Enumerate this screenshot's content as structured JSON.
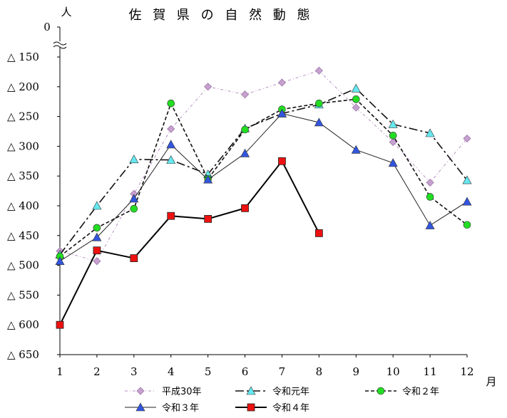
{
  "chart_data": {
    "type": "line",
    "title": "佐 賀 県 の 自 然 動 態",
    "y_unit": "人",
    "x_unit": "月",
    "x": [
      1,
      2,
      3,
      4,
      5,
      6,
      7,
      8,
      9,
      10,
      11,
      12
    ],
    "x_tick_labels": [
      "1",
      "2",
      "3",
      "4",
      "5",
      "6",
      "7",
      "8",
      "9",
      "10",
      "11",
      "12"
    ],
    "y_tick_labels": [
      "0",
      "△ 150",
      "△ 200",
      "△ 250",
      "△ 300",
      "△ 350",
      "△ 400",
      "△ 450",
      "△ 500",
      "△ 550",
      "△ 600",
      "△ 650"
    ],
    "y_ticks": [
      -150,
      -200,
      -250,
      -300,
      -350,
      -400,
      -450,
      -500,
      -550,
      -600,
      -650
    ],
    "ylim": [
      -650,
      -130
    ],
    "y_axis_break": true,
    "grid": false,
    "legend_position": "bottom",
    "series": [
      {
        "name": "平成30年",
        "color": "#c8a0d0",
        "marker": "diamond",
        "dash": "dashdot-fine",
        "values": [
          -476,
          -493,
          -380,
          -271,
          -200,
          -213,
          -193,
          -173,
          -235,
          -293,
          -361,
          -287
        ]
      },
      {
        "name": "令和元年",
        "color": "#66e8f0",
        "marker": "triangle",
        "dash": "dashdot",
        "values": [
          -482,
          -400,
          -322,
          -323,
          -347,
          -270,
          -245,
          -230,
          -203,
          -263,
          -278,
          -357
        ]
      },
      {
        "name": "令和２年",
        "color": "#22dd22",
        "marker": "circle",
        "dash": "dashed",
        "values": [
          -485,
          -437,
          -405,
          -228,
          -355,
          -272,
          -238,
          -228,
          -221,
          -282,
          -385,
          -432
        ]
      },
      {
        "name": "令和３年",
        "color": "#3355dd",
        "marker": "triangle",
        "dash": "solid-thin",
        "values": [
          -493,
          -453,
          -388,
          -297,
          -356,
          -312,
          -245,
          -260,
          -306,
          -328,
          -433,
          -393
        ]
      },
      {
        "name": "令和４年",
        "color": "#ee1111",
        "marker": "square",
        "dash": "solid",
        "values": [
          -600,
          -475,
          -488,
          -417,
          -422,
          -404,
          -325,
          -446,
          null,
          null,
          null,
          null
        ]
      }
    ]
  }
}
